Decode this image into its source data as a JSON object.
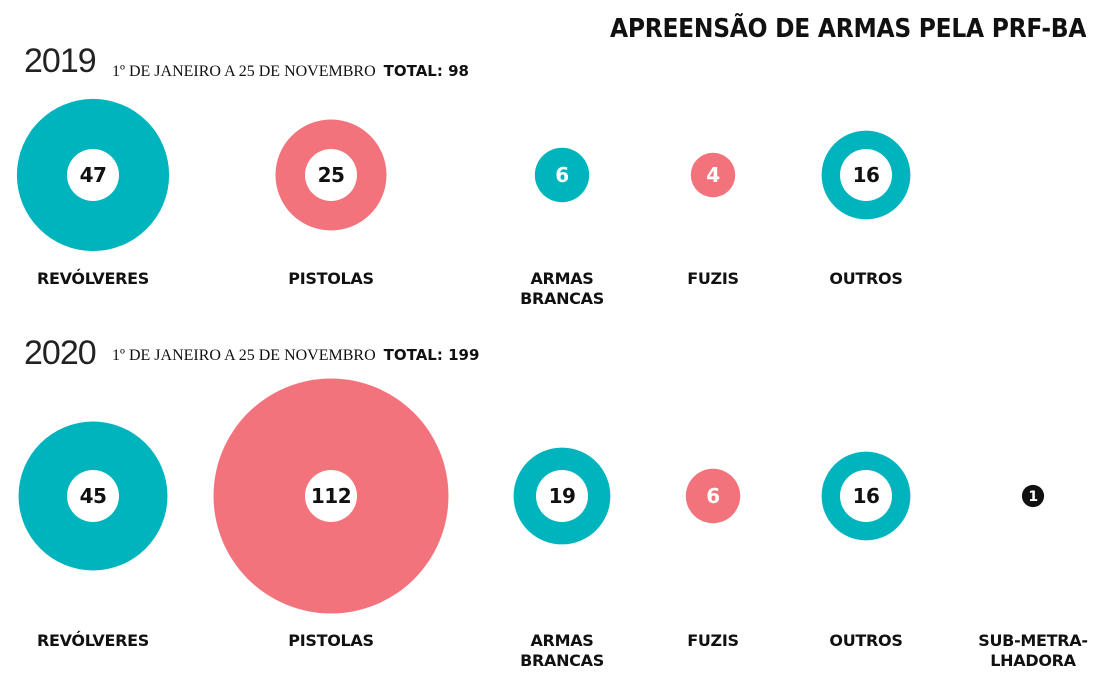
{
  "title": "APREENSÃO DE ARMAS PELA PRF-BA",
  "colors": {
    "teal": "#00b4bd",
    "pink": "#f2737b",
    "black": "#111111",
    "white": "#ffffff"
  },
  "chart_data": [
    {
      "type": "bubble",
      "year": "2019",
      "period": "1º DE JANEIRO A 25 DE NOVEMBRO",
      "total_label": "TOTAL: 98",
      "categories": [
        {
          "label": [
            "REVÓLVERES"
          ],
          "value": 47,
          "color": "teal"
        },
        {
          "label": [
            "PISTOLAS"
          ],
          "value": 25,
          "color": "pink"
        },
        {
          "label": [
            "ARMAS",
            "BRANCAS"
          ],
          "value": 6,
          "color": "teal"
        },
        {
          "label": [
            "FUZIS"
          ],
          "value": 4,
          "color": "pink"
        },
        {
          "label": [
            "OUTROS"
          ],
          "value": 16,
          "color": "teal"
        }
      ]
    },
    {
      "type": "bubble",
      "year": "2020",
      "period": "1º DE JANEIRO A 25 DE NOVEMBRO",
      "total_label": "TOTAL: 199",
      "categories": [
        {
          "label": [
            "REVÓLVERES"
          ],
          "value": 45,
          "color": "teal"
        },
        {
          "label": [
            "PISTOLAS"
          ],
          "value": 112,
          "color": "pink"
        },
        {
          "label": [
            "ARMAS",
            "BRANCAS"
          ],
          "value": 19,
          "color": "teal"
        },
        {
          "label": [
            "FUZIS"
          ],
          "value": 6,
          "color": "pink"
        },
        {
          "label": [
            "OUTROS"
          ],
          "value": 16,
          "color": "teal"
        },
        {
          "label": [
            "SUB-METRA-",
            "LHADORA"
          ],
          "value": 1,
          "color": "black"
        }
      ]
    }
  ]
}
